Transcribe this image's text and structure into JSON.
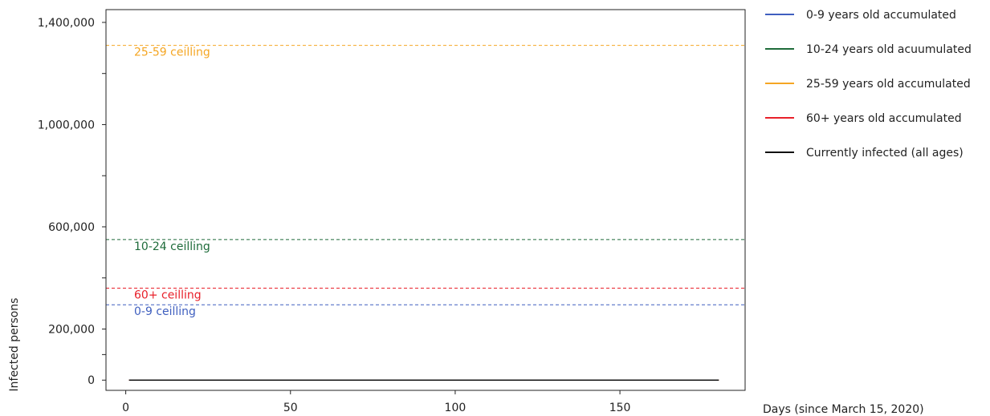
{
  "chart_data": {
    "type": "line",
    "xlabel": "Days (since March 15, 2020)",
    "ylabel": "Infected persons",
    "xlim": [
      -6,
      188
    ],
    "ylim": [
      -40000,
      1450000
    ],
    "x_ticks": [
      0,
      50,
      100,
      150
    ],
    "x_tick_labels": [
      "0",
      "50",
      "100",
      "150"
    ],
    "y_ticks": [
      0,
      100000,
      200000,
      400000,
      600000,
      800000,
      1000000,
      1200000,
      1400000
    ],
    "y_tick_labels": [
      "0",
      "",
      "200,000",
      "",
      "600,000",
      "",
      "1,000,000",
      "",
      "1,400,000"
    ],
    "series": [
      {
        "name": "0-9 years old accumulated",
        "color": "#3f5fbf",
        "x": [
          1,
          180
        ],
        "y": [
          0,
          0
        ]
      },
      {
        "name": "10-24 years old acuumulated",
        "color": "#1e6b3a",
        "x": [
          1,
          180
        ],
        "y": [
          0,
          0
        ]
      },
      {
        "name": "25-59 years old accumulated",
        "color": "#f5a623",
        "x": [
          1,
          180
        ],
        "y": [
          0,
          0
        ]
      },
      {
        "name": "60+ years old accumulated",
        "color": "#e8202a",
        "x": [
          1,
          180
        ],
        "y": [
          0,
          0
        ]
      },
      {
        "name": "Currently infected (all ages)",
        "color": "#111111",
        "x": [
          1,
          180
        ],
        "y": [
          0,
          0
        ]
      }
    ],
    "ceilings": [
      {
        "label": "25-59 ceilling",
        "value": 1310000,
        "color": "#f5a623"
      },
      {
        "label": "10-24 ceilling",
        "value": 550000,
        "color": "#1e6b3a"
      },
      {
        "label": "60+ ceilling",
        "value": 360000,
        "color": "#e8202a"
      },
      {
        "label": "0-9 ceilling",
        "value": 295000,
        "color": "#3f5fbf"
      }
    ],
    "legend": {
      "position": "outside-right-top"
    }
  }
}
